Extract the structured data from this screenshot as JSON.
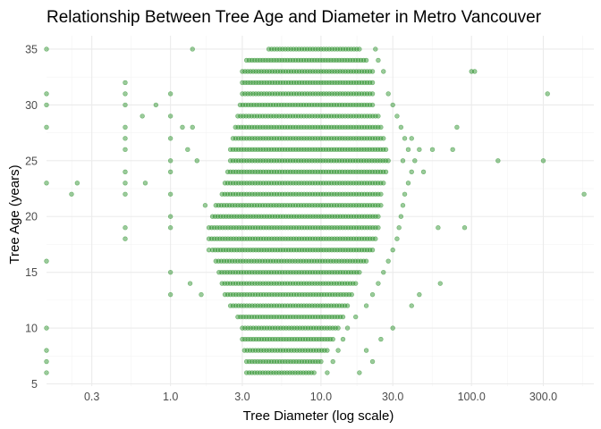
{
  "chart_data": {
    "type": "scatter",
    "title": "Relationship Between Tree Age and Diameter in Metro Vancouver",
    "xlabel": "Tree Diameter (log scale)",
    "ylabel": "Tree Age (years)",
    "x_scale": "log10",
    "xlim": [
      0.15,
      650
    ],
    "ylim": [
      4.8,
      36.2
    ],
    "x_ticks": [
      0.3,
      1,
      3,
      10,
      30,
      100,
      300
    ],
    "x_tick_labels": [
      "0.3",
      "1.0",
      "3.0",
      "10.0",
      "30.0",
      "100.0",
      "300.0"
    ],
    "y_ticks": [
      5,
      10,
      15,
      20,
      25,
      30,
      35
    ],
    "y_tick_labels": [
      "5",
      "10",
      "15",
      "20",
      "25",
      "30",
      "35"
    ],
    "grid": true,
    "legend": "none",
    "point_color": "#228B22",
    "point_opacity": 0.45,
    "series": [
      {
        "dense_bands": [
          {
            "age": 35,
            "from": 4.5,
            "to": 18
          },
          {
            "age": 34,
            "from": 3.2,
            "to": 20
          },
          {
            "age": 33,
            "from": 3.0,
            "to": 22
          },
          {
            "age": 32,
            "from": 3.0,
            "to": 22
          },
          {
            "age": 31,
            "from": 3.0,
            "to": 22
          },
          {
            "age": 30,
            "from": 2.9,
            "to": 22
          },
          {
            "age": 29,
            "from": 2.8,
            "to": 24
          },
          {
            "age": 28,
            "from": 2.7,
            "to": 25
          },
          {
            "age": 27,
            "from": 2.6,
            "to": 26
          },
          {
            "age": 26,
            "from": 2.5,
            "to": 27
          },
          {
            "age": 25,
            "from": 2.5,
            "to": 28
          },
          {
            "age": 24,
            "from": 2.4,
            "to": 27
          },
          {
            "age": 23,
            "from": 2.3,
            "to": 26
          },
          {
            "age": 22,
            "from": 2.2,
            "to": 25
          },
          {
            "age": 21,
            "from": 2.0,
            "to": 25
          },
          {
            "age": 20,
            "from": 1.9,
            "to": 24
          },
          {
            "age": 19,
            "from": 1.8,
            "to": 24
          },
          {
            "age": 18,
            "from": 1.8,
            "to": 23
          },
          {
            "age": 17,
            "from": 1.9,
            "to": 22
          },
          {
            "age": 16,
            "from": 2.0,
            "to": 20
          },
          {
            "age": 15,
            "from": 2.1,
            "to": 18
          },
          {
            "age": 14,
            "from": 2.2,
            "to": 17
          },
          {
            "age": 13,
            "from": 2.3,
            "to": 16
          },
          {
            "age": 12,
            "from": 2.5,
            "to": 15
          },
          {
            "age": 11,
            "from": 2.8,
            "to": 14
          },
          {
            "age": 10,
            "from": 3.0,
            "to": 13
          },
          {
            "age": 9,
            "from": 3.0,
            "to": 12
          },
          {
            "age": 8,
            "from": 3.1,
            "to": 11
          },
          {
            "age": 7,
            "from": 3.2,
            "to": 10
          },
          {
            "age": 6,
            "from": 3.2,
            "to": 9
          }
        ],
        "points": [
          [
            0.15,
            35
          ],
          [
            0.15,
            31
          ],
          [
            0.15,
            30
          ],
          [
            0.15,
            28
          ],
          [
            0.15,
            23
          ],
          [
            0.15,
            16
          ],
          [
            0.15,
            10
          ],
          [
            0.15,
            8
          ],
          [
            0.15,
            7
          ],
          [
            0.15,
            6
          ],
          [
            0.24,
            23
          ],
          [
            0.22,
            22
          ],
          [
            0.5,
            32
          ],
          [
            0.5,
            31
          ],
          [
            0.5,
            30
          ],
          [
            0.5,
            28
          ],
          [
            0.5,
            27
          ],
          [
            0.5,
            26
          ],
          [
            0.5,
            24
          ],
          [
            0.5,
            23
          ],
          [
            0.5,
            22
          ],
          [
            0.5,
            19
          ],
          [
            0.5,
            18
          ],
          [
            0.65,
            29
          ],
          [
            0.68,
            23
          ],
          [
            0.8,
            30
          ],
          [
            1.0,
            31
          ],
          [
            1.0,
            29
          ],
          [
            1.0,
            27
          ],
          [
            1.0,
            25
          ],
          [
            1.0,
            24
          ],
          [
            1.0,
            22
          ],
          [
            1.0,
            20
          ],
          [
            1.0,
            19
          ],
          [
            1.0,
            15
          ],
          [
            1.0,
            13
          ],
          [
            1.2,
            28
          ],
          [
            1.3,
            26
          ],
          [
            1.35,
            14
          ],
          [
            1.4,
            35
          ],
          [
            1.4,
            28
          ],
          [
            1.5,
            25
          ],
          [
            1.6,
            13
          ],
          [
            1.7,
            21
          ],
          [
            1.8,
            17
          ],
          [
            23,
            35
          ],
          [
            24,
            34
          ],
          [
            26,
            33
          ],
          [
            28,
            31
          ],
          [
            30,
            30
          ],
          [
            32,
            29
          ],
          [
            34,
            28
          ],
          [
            36,
            27
          ],
          [
            38,
            26
          ],
          [
            42,
            25
          ],
          [
            40,
            24
          ],
          [
            38,
            23
          ],
          [
            36,
            22
          ],
          [
            35,
            21
          ],
          [
            34,
            20
          ],
          [
            33,
            19
          ],
          [
            32,
            18
          ],
          [
            30,
            17
          ],
          [
            28,
            16
          ],
          [
            26,
            15
          ],
          [
            24,
            14
          ],
          [
            22,
            13
          ],
          [
            20,
            12
          ],
          [
            17,
            11
          ],
          [
            15,
            10
          ],
          [
            14,
            9
          ],
          [
            13,
            8
          ],
          [
            12,
            7
          ],
          [
            11,
            6
          ],
          [
            35,
            25
          ],
          [
            40,
            27
          ],
          [
            45,
            26
          ],
          [
            48,
            24
          ],
          [
            55,
            26
          ],
          [
            60,
            19
          ],
          [
            62,
            14
          ],
          [
            45,
            13
          ],
          [
            40,
            12
          ],
          [
            30,
            10
          ],
          [
            25,
            9
          ],
          [
            20,
            8
          ],
          [
            22,
            7
          ],
          [
            18,
            6
          ],
          [
            80,
            28
          ],
          [
            90,
            19
          ],
          [
            100,
            33
          ],
          [
            105,
            33
          ],
          [
            75,
            26
          ],
          [
            150,
            25
          ],
          [
            300,
            25
          ],
          [
            320,
            31
          ],
          [
            560,
            22
          ]
        ]
      }
    ]
  }
}
